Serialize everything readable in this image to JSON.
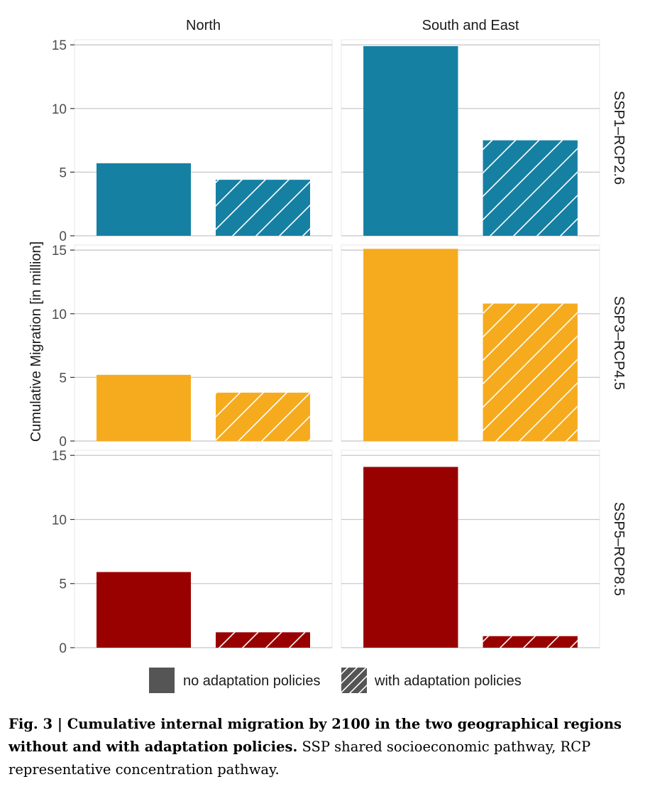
{
  "chart_data": {
    "type": "bar",
    "ylabel": "Cumulative Migration [in million]",
    "xlabel": "",
    "ylim": [
      0,
      15.4
    ],
    "yticks": [
      0,
      5,
      10,
      15
    ],
    "grid": true,
    "columns": [
      "North",
      "South and East"
    ],
    "rows": [
      "SSP1–RCP2.6",
      "SSP3–RCP4.5",
      "SSP5–RCP8.5"
    ],
    "row_colors": [
      "#1680a3",
      "#f6ab1e",
      "#990000"
    ],
    "series": [
      {
        "name": "no adaptation policies",
        "hatched": false
      },
      {
        "name": "with adaptation policies",
        "hatched": true
      }
    ],
    "values": [
      [
        [
          5.7,
          4.4
        ],
        [
          14.9,
          7.5
        ]
      ],
      [
        [
          5.2,
          3.8
        ],
        [
          15.1,
          10.8
        ]
      ],
      [
        [
          5.9,
          1.2
        ],
        [
          14.1,
          0.9
        ]
      ]
    ],
    "legend_position": "bottom"
  },
  "caption": {
    "bold": "Fig. 3 | Cumulative internal migration by 2100 in the two geographical regions without and with adaptation policies.",
    "rest": " SSP shared socioeconomic pathway, RCP representative concentration pathway."
  }
}
